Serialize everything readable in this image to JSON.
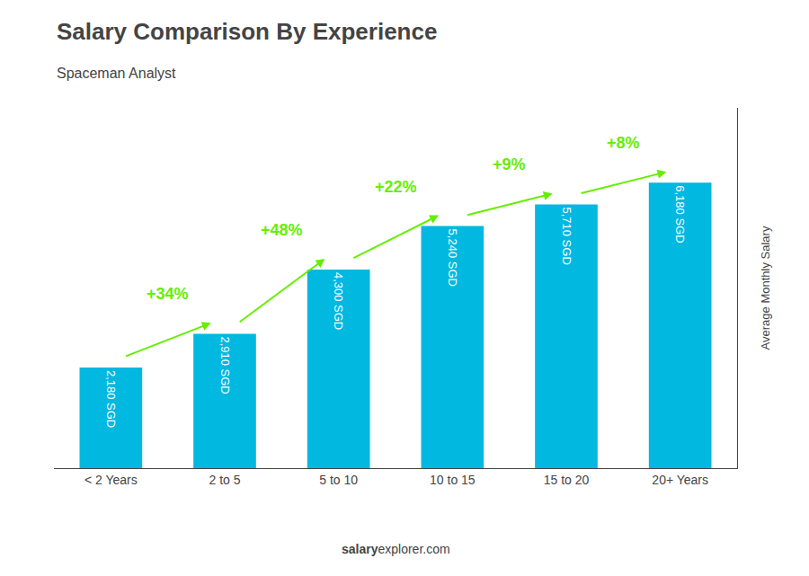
{
  "chart_data": {
    "type": "bar",
    "title": "Salary Comparison By Experience",
    "subtitle": "Spaceman Analyst",
    "categories": [
      "< 2 Years",
      "2 to 5",
      "5 to 10",
      "10 to 15",
      "15 to 20",
      "20+ Years"
    ],
    "values": [
      2180,
      2910,
      4300,
      5240,
      5710,
      6180
    ],
    "value_labels": [
      "2,180 SGD",
      "2,910 SGD",
      "4,300 SGD",
      "5,240 SGD",
      "5,710 SGD",
      "6,180 SGD"
    ],
    "data_labels": true,
    "color": "#00b8e0",
    "ylabel": "Average Monthly Salary",
    "ylim": [
      0,
      7800
    ],
    "tick_labels": "x",
    "grid": false,
    "annotations": [
      {
        "text": "+34%",
        "color": "#66ee00"
      },
      {
        "text": "+48%",
        "color": "#66ee00"
      },
      {
        "text": "+22%",
        "color": "#66ee00"
      },
      {
        "text": "+9%",
        "color": "#66ee00"
      },
      {
        "text": "+8%",
        "color": "#66ee00"
      }
    ],
    "footer": [
      "salary",
      "explorer.com"
    ]
  }
}
